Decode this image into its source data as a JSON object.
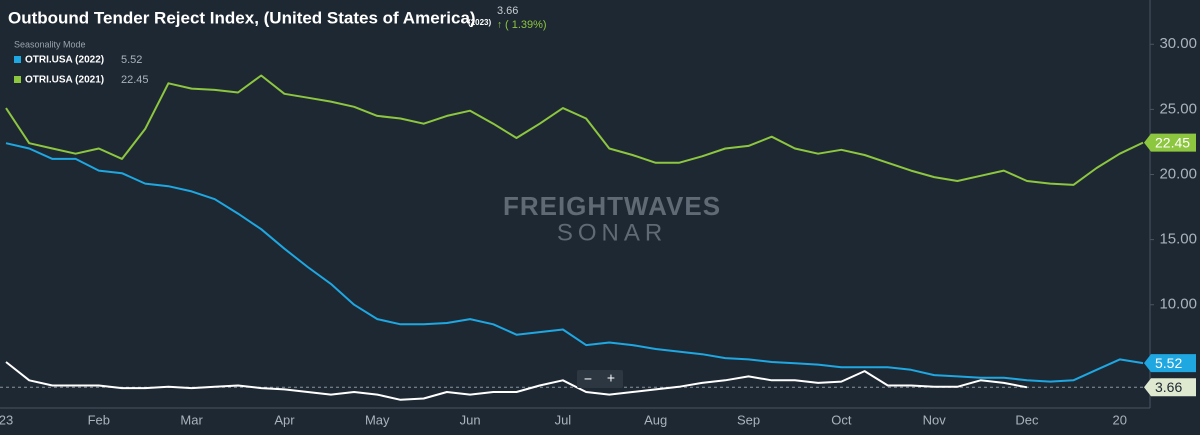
{
  "chart_data": {
    "type": "line",
    "title": "Outbound Tender Reject Index, (United States of America)",
    "current_value_label": "3.66",
    "change_label": "( 1.39%)",
    "mode_label": "Seasonality Mode",
    "watermark": [
      "FREIGHTWAVES",
      "SONAR"
    ],
    "zoom_controls": [
      "−",
      "+"
    ],
    "categories": [
      "23",
      null,
      null,
      null,
      "Feb",
      null,
      null,
      null,
      "Mar",
      null,
      null,
      null,
      "Apr",
      null,
      null,
      null,
      "May",
      null,
      null,
      null,
      "Jun",
      null,
      null,
      null,
      "Jul",
      null,
      null,
      null,
      "Aug",
      null,
      null,
      null,
      "Sep",
      null,
      null,
      null,
      "Oct",
      null,
      null,
      null,
      "Nov",
      null,
      null,
      null,
      "Dec",
      null,
      null,
      null,
      "20",
      null
    ],
    "ylim": [
      2.07,
      33.4
    ],
    "yticks": [
      {
        "value": 10,
        "label": "10.00"
      },
      {
        "value": 15,
        "label": "15.00"
      },
      {
        "value": 20,
        "label": "20.00"
      },
      {
        "value": 25,
        "label": "25.00"
      },
      {
        "value": 30,
        "label": "30.00"
      }
    ],
    "grid": false,
    "series": [
      {
        "name": "(2023)",
        "color": "#ffffff",
        "values": [
          5.6,
          4.2,
          3.8,
          3.8,
          3.8,
          3.6,
          3.6,
          3.7,
          3.6,
          3.7,
          3.8,
          3.6,
          3.5,
          3.3,
          3.1,
          3.3,
          3.1,
          2.7,
          2.8,
          3.3,
          3.1,
          3.3,
          3.3,
          3.8,
          4.2,
          3.3,
          3.1,
          3.3,
          3.5,
          3.7,
          4.0,
          4.2,
          4.5,
          4.2,
          4.2,
          4.0,
          4.1,
          4.9,
          3.8,
          3.8,
          3.7,
          3.7,
          4.2,
          4.0,
          3.66,
          null,
          null,
          null,
          null,
          null
        ]
      },
      {
        "name": "OTRI.USA (2022)",
        "color": "#1ea7e1",
        "values": [
          22.4,
          22.0,
          21.2,
          21.2,
          20.3,
          20.1,
          19.3,
          19.1,
          18.7,
          18.1,
          17.0,
          15.8,
          14.3,
          12.9,
          11.6,
          10.0,
          8.9,
          8.5,
          8.5,
          8.6,
          8.9,
          8.5,
          7.7,
          7.9,
          8.1,
          6.9,
          7.1,
          6.9,
          6.6,
          6.4,
          6.2,
          5.9,
          5.8,
          5.6,
          5.5,
          5.4,
          5.2,
          5.2,
          5.2,
          5.0,
          4.6,
          4.5,
          4.4,
          4.4,
          4.2,
          4.1,
          4.2,
          5.0,
          5.8,
          5.52
        ]
      },
      {
        "name": "OTRI.USA (2021)",
        "color": "#8dc63f",
        "values": [
          25.1,
          22.4,
          22.0,
          21.6,
          22.0,
          21.2,
          23.5,
          27.0,
          26.6,
          26.5,
          26.3,
          27.6,
          26.2,
          25.9,
          25.6,
          25.2,
          24.5,
          24.3,
          23.9,
          24.5,
          24.9,
          23.9,
          22.8,
          23.9,
          25.1,
          24.3,
          22.0,
          21.5,
          20.9,
          20.9,
          21.4,
          22.0,
          22.2,
          22.9,
          22.0,
          21.6,
          21.9,
          21.5,
          20.9,
          20.3,
          19.8,
          19.5,
          19.9,
          20.3,
          19.5,
          19.3,
          19.2,
          20.5,
          21.6,
          22.45
        ]
      }
    ]
  }
}
